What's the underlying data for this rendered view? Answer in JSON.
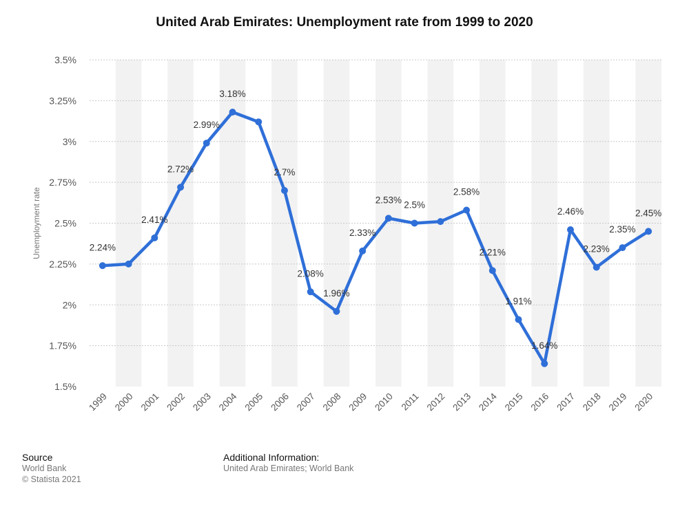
{
  "chart_data": {
    "type": "line",
    "title": "United Arab Emirates: Unemployment rate from 1999 to 2020",
    "xlabel": "",
    "ylabel": "Unemployment rate",
    "categories": [
      "1999",
      "2000",
      "2001",
      "2002",
      "2003",
      "2004",
      "2005",
      "2006",
      "2007",
      "2008",
      "2009",
      "2010",
      "2011",
      "2012",
      "2013",
      "2014",
      "2015",
      "2016",
      "2017",
      "2018",
      "2019",
      "2020"
    ],
    "values": [
      2.24,
      2.25,
      2.41,
      2.72,
      2.99,
      3.18,
      3.12,
      2.7,
      2.08,
      1.96,
      2.33,
      2.53,
      2.5,
      2.51,
      2.58,
      2.21,
      1.91,
      1.64,
      2.46,
      2.23,
      2.35,
      2.45
    ],
    "data_labels": [
      "2.24%",
      "",
      "2.41%",
      "2.72%",
      "2.99%",
      "3.18%",
      "",
      "2.7%",
      "2.08%",
      "1.96%",
      "2.33%",
      "2.53%",
      "2.5%",
      "",
      "2.58%",
      "2.21%",
      "1.91%",
      "1.64%",
      "2.46%",
      "2.23%",
      "2.35%",
      "2.45%"
    ],
    "yticks": [
      1.5,
      1.75,
      2,
      2.25,
      2.5,
      2.75,
      3,
      3.25,
      3.5
    ],
    "ytick_labels": [
      "1.5%",
      "1.75%",
      "2%",
      "2.25%",
      "2.5%",
      "2.75%",
      "3%",
      "3.25%",
      "3.5%"
    ],
    "ylim": [
      1.5,
      3.5
    ],
    "grid": true,
    "line_color": "#2f6fd8",
    "band_color": "#f2f2f2",
    "grid_color": "#c8c8c8"
  },
  "footer": {
    "source_heading": "Source",
    "source_line1": "World Bank",
    "source_line2": "© Statista 2021",
    "additional_heading": "Additional Information:",
    "additional_text": "United Arab Emirates; World Bank"
  }
}
